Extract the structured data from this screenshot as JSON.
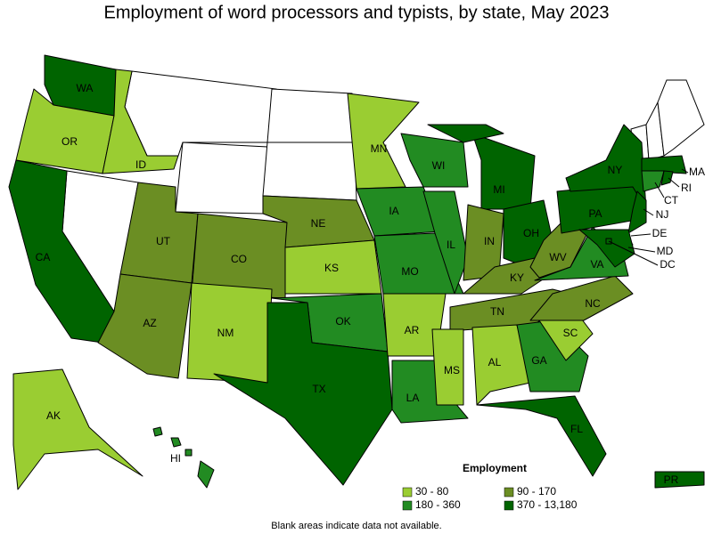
{
  "title": "Employment of word processors and typists, by state, May 2023",
  "legend": {
    "title": "Employment",
    "items": [
      {
        "label": "30 - 80",
        "color": "#9acd32"
      },
      {
        "label": "90 - 170",
        "color": "#6b8e23"
      },
      {
        "label": "180 - 360",
        "color": "#228b22"
      },
      {
        "label": "370 - 13,180",
        "color": "#006400"
      }
    ]
  },
  "states": [
    {
      "label": "WA",
      "color": "#006400"
    },
    {
      "label": "OR",
      "color": "#9acd32"
    },
    {
      "label": "CA",
      "color": "#006400"
    },
    {
      "label": "ID",
      "color": "#9acd32"
    },
    {
      "label": "UT",
      "color": "#6b8e23"
    },
    {
      "label": "CO",
      "color": "#6b8e23"
    },
    {
      "label": "AZ",
      "color": "#6b8e23"
    },
    {
      "label": "NM",
      "color": "#9acd32"
    },
    {
      "label": "NE",
      "color": "#6b8e23"
    },
    {
      "label": "KS",
      "color": "#9acd32"
    },
    {
      "label": "OK",
      "color": "#228b22"
    },
    {
      "label": "TX",
      "color": "#006400"
    },
    {
      "label": "MN",
      "color": "#9acd32"
    },
    {
      "label": "IA",
      "color": "#228b22"
    },
    {
      "label": "MO",
      "color": "#228b22"
    },
    {
      "label": "AR",
      "color": "#9acd32"
    },
    {
      "label": "LA",
      "color": "#228b22"
    },
    {
      "label": "WI",
      "color": "#228b22"
    },
    {
      "label": "IL",
      "color": "#228b22"
    },
    {
      "label": "MI",
      "color": "#006400"
    },
    {
      "label": "IN",
      "color": "#6b8e23"
    },
    {
      "label": "OH",
      "color": "#006400"
    },
    {
      "label": "KY",
      "color": "#6b8e23"
    },
    {
      "label": "TN",
      "color": "#6b8e23"
    },
    {
      "label": "MS",
      "color": "#9acd32"
    },
    {
      "label": "AL",
      "color": "#9acd32"
    },
    {
      "label": "GA",
      "color": "#228b22"
    },
    {
      "label": "FL",
      "color": "#006400"
    },
    {
      "label": "SC",
      "color": "#9acd32"
    },
    {
      "label": "NC",
      "color": "#6b8e23"
    },
    {
      "label": "VA",
      "color": "#228b22"
    },
    {
      "label": "WV",
      "color": "#6b8e23"
    },
    {
      "label": "PA",
      "color": "#006400"
    },
    {
      "label": "NY",
      "color": "#006400"
    },
    {
      "label": "NJ",
      "color": "#006400"
    },
    {
      "label": "DE",
      "color": "#9acd32"
    },
    {
      "label": "MD",
      "color": "#006400"
    },
    {
      "label": "DC",
      "color": "#006400"
    },
    {
      "label": "MA",
      "color": "#006400"
    },
    {
      "label": "CT",
      "color": "#228b22"
    },
    {
      "label": "RI",
      "color": "#006400"
    },
    {
      "label": "AK",
      "color": "#9acd32"
    },
    {
      "label": "HI",
      "color": "#228b22"
    },
    {
      "label": "PR",
      "color": "#006400"
    }
  ],
  "footnote": "Blank areas indicate data not available."
}
